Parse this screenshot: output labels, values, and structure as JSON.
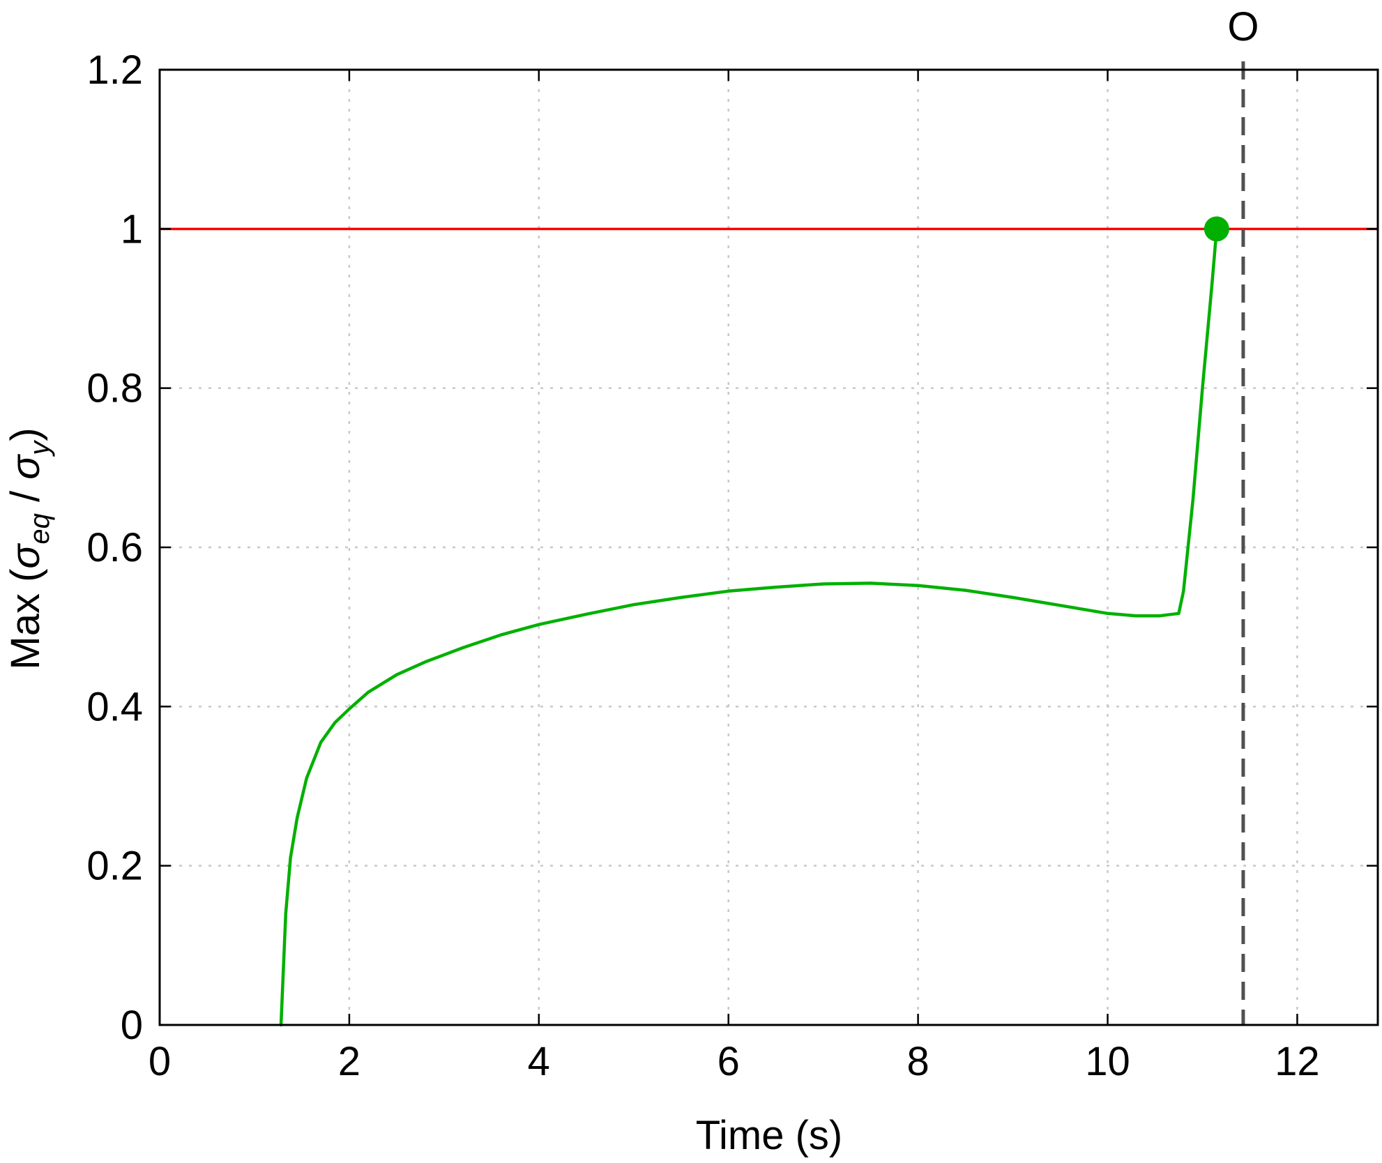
{
  "chart_data": {
    "type": "line",
    "xlabel": "Time (s)",
    "ylabel": {
      "prefix": "Max (",
      "sigma": "σ",
      "sub_eq": "eq",
      "slash": " / ",
      "sub_y": "y",
      "suffix": ")"
    },
    "xlim": [
      0,
      12.85
    ],
    "ylim": [
      0,
      1.2
    ],
    "xticks": [
      0,
      2,
      4,
      6,
      8,
      10,
      12
    ],
    "xtick_labels": [
      "0",
      "2",
      "4",
      "6",
      "8",
      "10",
      "12"
    ],
    "yticks": [
      0,
      0.2,
      0.4,
      0.6,
      0.8,
      1,
      1.2
    ],
    "ytick_labels": [
      "0",
      "0.2",
      "0.4",
      "0.6",
      "0.8",
      "1",
      "1.2"
    ],
    "grid": true,
    "series": [
      {
        "color": "#00b000",
        "x": [
          1.28,
          1.33,
          1.38,
          1.45,
          1.55,
          1.7,
          1.85,
          2.0,
          2.2,
          2.5,
          2.8,
          3.2,
          3.6,
          4.0,
          4.5,
          5.0,
          5.5,
          6.0,
          6.5,
          7.0,
          7.5,
          8.0,
          8.5,
          9.0,
          9.5,
          10.0,
          10.3,
          10.55,
          10.75,
          10.8,
          10.9,
          11.0,
          11.1,
          11.15
        ],
        "y": [
          0.0,
          0.14,
          0.21,
          0.26,
          0.31,
          0.355,
          0.38,
          0.397,
          0.418,
          0.44,
          0.456,
          0.474,
          0.49,
          0.503,
          0.516,
          0.528,
          0.537,
          0.545,
          0.55,
          0.554,
          0.555,
          0.552,
          0.546,
          0.537,
          0.527,
          0.517,
          0.514,
          0.514,
          0.517,
          0.545,
          0.66,
          0.8,
          0.93,
          1.0
        ]
      }
    ],
    "threshold": {
      "y": 1.0,
      "color": "#ff0000"
    },
    "marker": {
      "x": 11.15,
      "y": 1.0,
      "color": "#00b000"
    },
    "vline": {
      "x": 11.43,
      "label": "O",
      "color": "#505050"
    }
  }
}
